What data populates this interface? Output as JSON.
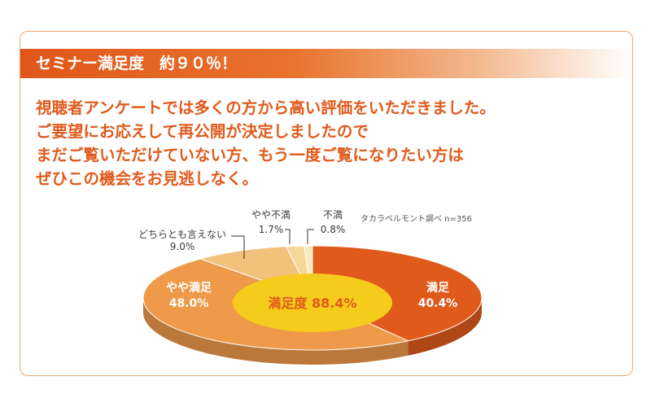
{
  "banner": {
    "text": "セミナー満足度　約９０％！"
  },
  "message": {
    "lines": [
      "視聴者アンケートでは多くの方から高い評価をいただきました。",
      "ご要望にお応えして再公開が決定しましたので",
      "まだご覧いただけていない方、もう一度ご覧になりたい方は",
      "ぜひこの機会をお見逃しなく。"
    ]
  },
  "chart_data": {
    "type": "pie",
    "note": "タカラベルモント調べ n=356",
    "center_label": "満足度 88.4%",
    "slices": [
      {
        "label": "満足",
        "value": 40.4,
        "value_label": "40.4%",
        "color": "#e05a1c"
      },
      {
        "label": "やや満足",
        "value": 48.0,
        "value_label": "48.0%",
        "color": "#ee9a4a"
      },
      {
        "label": "どちらとも言えない",
        "value": 9.0,
        "value_label": "9.0%",
        "color": "#f2c27c"
      },
      {
        "label": "やや不満",
        "value": 1.7,
        "value_label": "1.7%",
        "color": "#f5d898"
      },
      {
        "label": "不満",
        "value": 0.8,
        "value_label": "0.8%",
        "color": "#faeab8"
      }
    ],
    "center_color": "#f5cc1c"
  }
}
